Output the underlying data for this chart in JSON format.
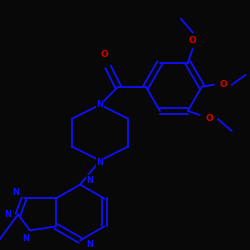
{
  "bg": "#080808",
  "bc": "#1010ff",
  "Oc": "#dd0000",
  "Nc": "#1010ff",
  "bw": 1.3,
  "figsize": [
    2.5,
    2.5
  ],
  "dpi": 100,
  "xlim": [
    0,
    250
  ],
  "ylim": [
    0,
    250
  ]
}
